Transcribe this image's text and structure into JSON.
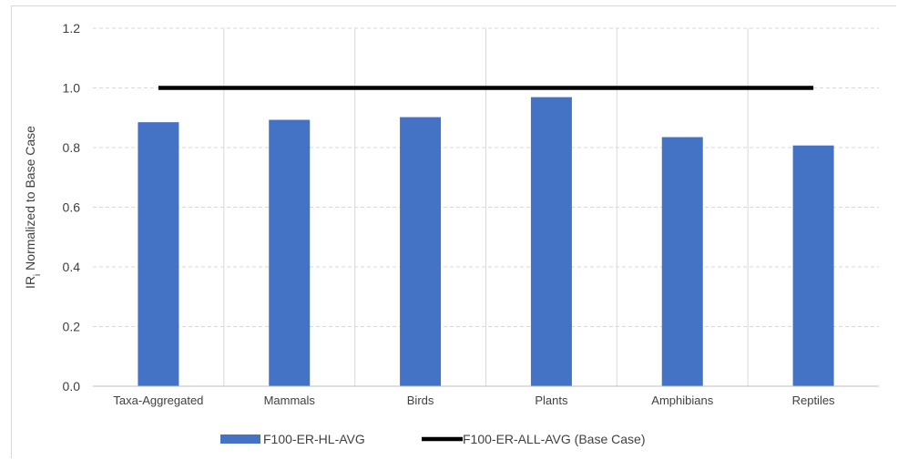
{
  "chart_data": {
    "type": "bar",
    "categories": [
      "Taxa-Aggregated",
      "Mammals",
      "Birds",
      "Plants",
      "Amphibians",
      "Reptiles"
    ],
    "series": [
      {
        "name": "F100-ER-HL-AVG",
        "type": "bar",
        "color": "#4472c4",
        "values": [
          0.885,
          0.893,
          0.902,
          0.969,
          0.835,
          0.807
        ]
      },
      {
        "name": "F100-ER-ALL-AVG (Base Case)",
        "type": "line",
        "color": "#000000",
        "values": [
          1.0,
          1.0,
          1.0,
          1.0,
          1.0,
          1.0
        ]
      }
    ],
    "ylabel": {
      "main": "IR",
      "sub": "i",
      "rest": " Normalized to Base Case"
    },
    "xlabel": "",
    "ylim": [
      0,
      1.2
    ],
    "yticks": [
      "0.0",
      "0.2",
      "0.4",
      "0.6",
      "0.8",
      "1.0",
      "1.2"
    ],
    "grid": true,
    "legend_position": "bottom"
  }
}
